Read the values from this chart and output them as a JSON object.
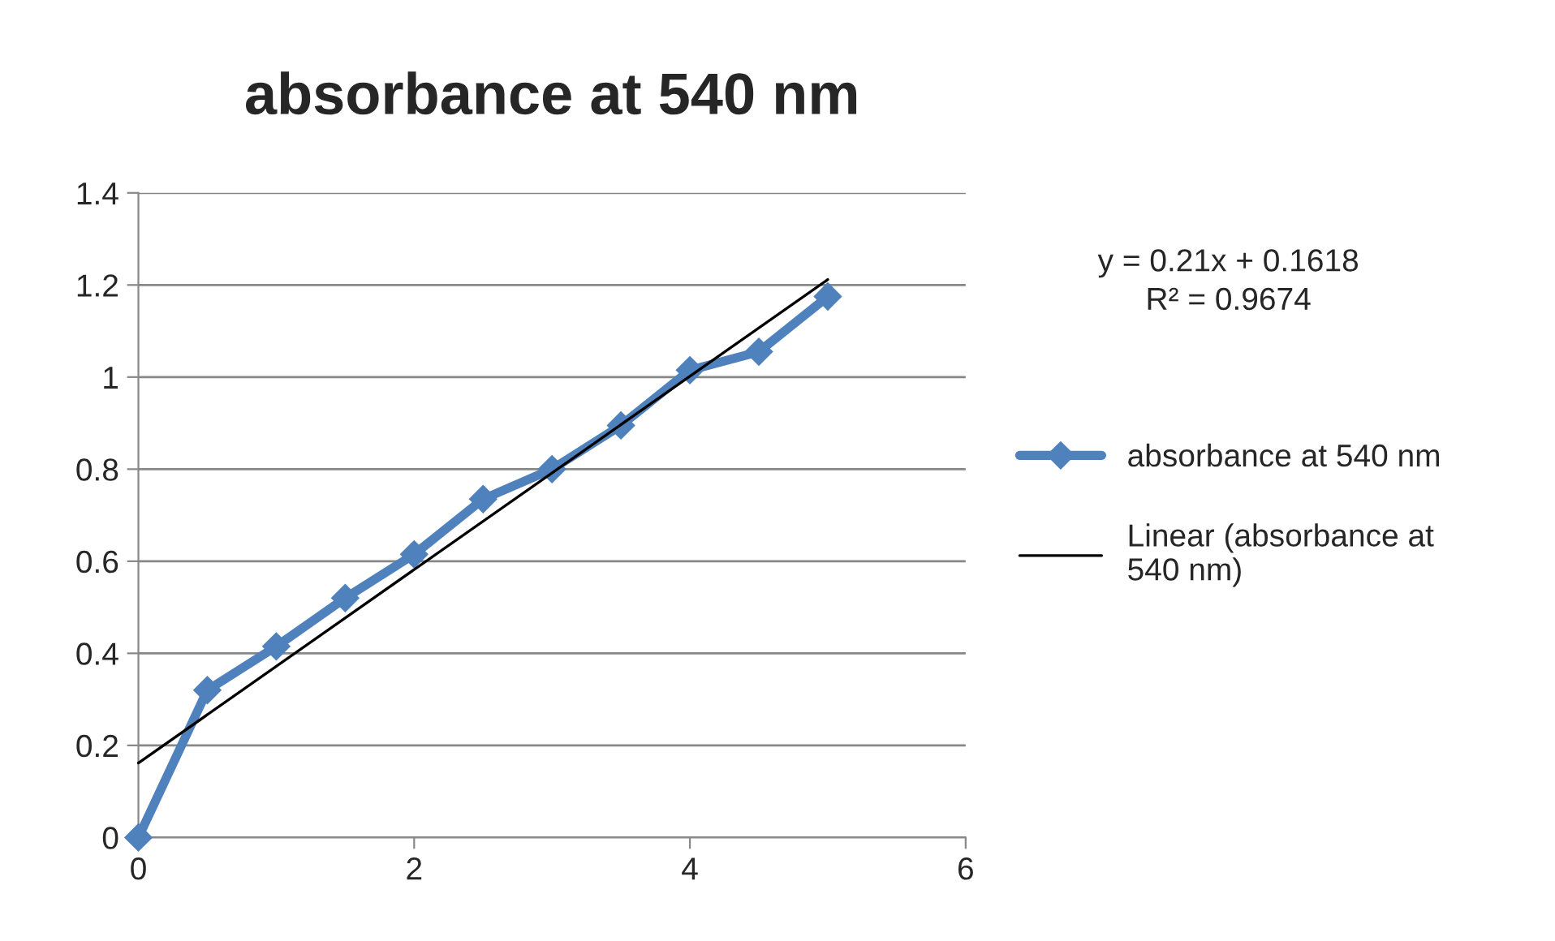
{
  "chart_data": {
    "type": "line",
    "title": "absorbance at 540 nm",
    "x": [
      0,
      0.5,
      1,
      1.5,
      2,
      2.5,
      3,
      3.5,
      4,
      4.5,
      5
    ],
    "series": [
      {
        "name": "absorbance at 540 nm",
        "color": "#4f81bd",
        "marker": "diamond",
        "values": [
          0,
          0.32,
          0.415,
          0.52,
          0.615,
          0.735,
          0.8,
          0.895,
          1.015,
          1.055,
          1.175
        ]
      },
      {
        "name": "Linear (absorbance at 540 nm)",
        "color": "#000000",
        "type": "line",
        "marker": "none",
        "x": [
          0,
          5
        ],
        "values": [
          0.1618,
          1.2118
        ]
      }
    ],
    "xlim": [
      0,
      6
    ],
    "xticks": [
      0,
      2,
      4,
      6
    ],
    "ylim": [
      0,
      1.4
    ],
    "yticks": [
      0,
      0.2,
      0.4,
      0.6,
      0.8,
      1,
      1.2,
      1.4
    ],
    "grid": "y",
    "legend": "right",
    "annotations": [
      "y = 0.21x + 0.1618\nR² = 0.9674"
    ]
  }
}
